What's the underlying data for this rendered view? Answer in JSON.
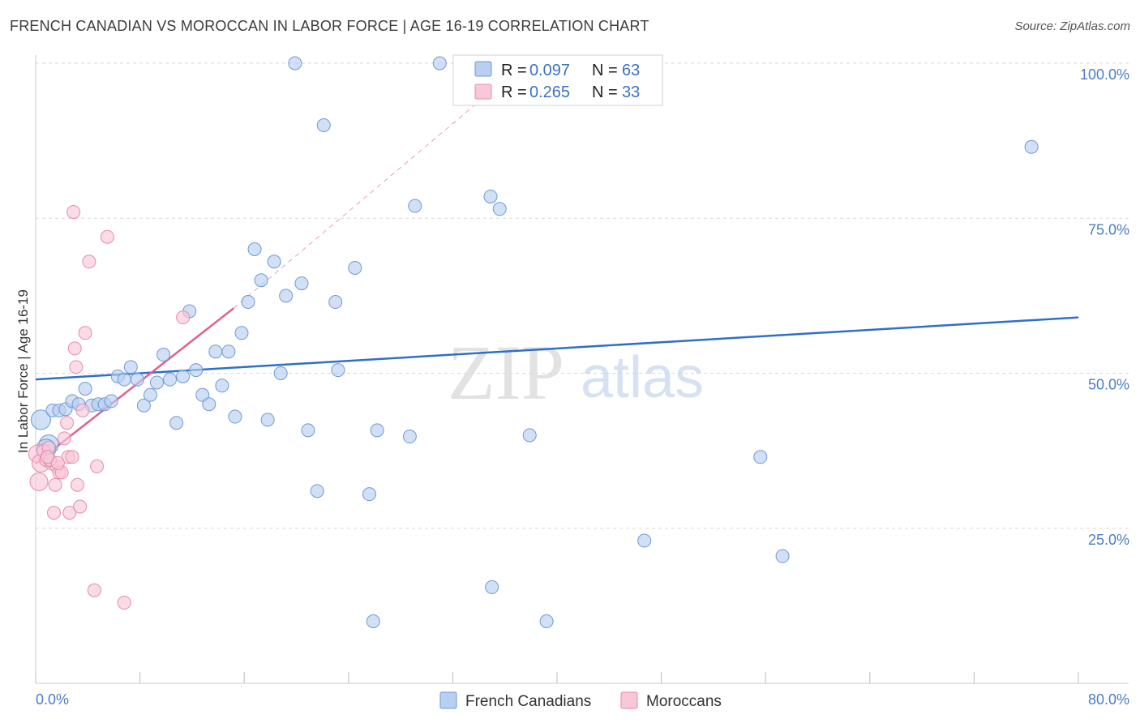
{
  "title": "FRENCH CANADIAN VS MOROCCAN IN LABOR FORCE | AGE 16-19 CORRELATION CHART",
  "source": "Source: ZipAtlas.com",
  "watermark": {
    "zip": "ZIP",
    "atlas": "atlas"
  },
  "colors": {
    "blue_fill": "#b8d0f0",
    "blue_stroke": "#6d9ad8",
    "blue_line": "#2f6fc9",
    "pink_fill": "#f8c8d8",
    "pink_stroke": "#e88aaa",
    "pink_line": "#e0608e",
    "grid": "#d8d8d8",
    "tick_text": "#4a7cc7"
  },
  "legend": {
    "rows": [
      {
        "r_label": "R =",
        "r_value": "0.097",
        "n_label": "N =",
        "n_value": "63"
      },
      {
        "r_label": "R =",
        "r_value": "0.265",
        "n_label": "N =",
        "n_value": "33"
      }
    ]
  },
  "chart_data": {
    "type": "scatter",
    "title": "FRENCH CANADIAN VS MOROCCAN IN LABOR FORCE | AGE 16-19 CORRELATION CHART",
    "xlabel": "",
    "ylabel": "In Labor Force | Age 16-19",
    "xlim": [
      0,
      80
    ],
    "ylim": [
      0,
      100
    ],
    "x_tick_labels": [
      "0.0%",
      "80.0%"
    ],
    "y_tick_labels": [
      {
        "value": 25,
        "label": "25.0%"
      },
      {
        "value": 50,
        "label": "50.0%"
      },
      {
        "value": 75,
        "label": "75.0%"
      },
      {
        "value": 100,
        "label": "100.0%"
      }
    ],
    "series": [
      {
        "name": "French Canadians",
        "points": [
          [
            0.4,
            42.5
          ],
          [
            1.3,
            44.0
          ],
          [
            1.8,
            44.0
          ],
          [
            2.3,
            44.2
          ],
          [
            2.8,
            45.5
          ],
          [
            3.3,
            45.0
          ],
          [
            3.8,
            47.5
          ],
          [
            4.3,
            44.8
          ],
          [
            4.8,
            45.0
          ],
          [
            5.3,
            45.0
          ],
          [
            5.8,
            45.5
          ],
          [
            6.3,
            49.5
          ],
          [
            6.8,
            49.0
          ],
          [
            7.3,
            51.0
          ],
          [
            7.8,
            49.0
          ],
          [
            8.3,
            44.8
          ],
          [
            8.8,
            46.5
          ],
          [
            9.3,
            48.5
          ],
          [
            9.8,
            53.0
          ],
          [
            10.3,
            49.0
          ],
          [
            10.8,
            42.0
          ],
          [
            11.3,
            49.5
          ],
          [
            11.8,
            60.0
          ],
          [
            12.3,
            50.5
          ],
          [
            12.8,
            46.5
          ],
          [
            13.3,
            45.0
          ],
          [
            13.8,
            53.5
          ],
          [
            14.3,
            48.0
          ],
          [
            14.8,
            53.5
          ],
          [
            15.3,
            43.0
          ],
          [
            15.8,
            56.5
          ],
          [
            16.3,
            61.5
          ],
          [
            16.8,
            70.0
          ],
          [
            17.3,
            65.0
          ],
          [
            17.8,
            42.5
          ],
          [
            18.3,
            68.0
          ],
          [
            18.8,
            50.0
          ],
          [
            19.2,
            62.5
          ],
          [
            19.9,
            100.0
          ],
          [
            20.4,
            64.5
          ],
          [
            20.9,
            40.8
          ],
          [
            21.6,
            31.0
          ],
          [
            22.1,
            90.0
          ],
          [
            23.0,
            61.5
          ],
          [
            23.2,
            50.5
          ],
          [
            24.5,
            67.0
          ],
          [
            25.6,
            30.5
          ],
          [
            25.9,
            10.0
          ],
          [
            26.2,
            40.8
          ],
          [
            28.7,
            39.8
          ],
          [
            29.1,
            77.0
          ],
          [
            31.0,
            100.0
          ],
          [
            34.9,
            78.5
          ],
          [
            35.0,
            15.5
          ],
          [
            35.6,
            76.5
          ],
          [
            37.9,
            40.0
          ],
          [
            39.2,
            10.0
          ],
          [
            46.7,
            23.0
          ],
          [
            55.6,
            36.5
          ],
          [
            57.3,
            20.5
          ],
          [
            76.4,
            86.5
          ],
          [
            1.0,
            38.5
          ],
          [
            0.8,
            37.8
          ]
        ],
        "trend": {
          "x0": 0,
          "y0": 49.0,
          "x1": 80,
          "y1": 59.0
        }
      },
      {
        "name": "Moroccans",
        "points": [
          [
            0.15,
            37.0
          ],
          [
            0.25,
            32.5
          ],
          [
            0.4,
            35.5
          ],
          [
            0.6,
            37.5
          ],
          [
            0.8,
            36.0
          ],
          [
            1.0,
            38.0
          ],
          [
            1.2,
            35.5
          ],
          [
            1.4,
            27.5
          ],
          [
            1.5,
            32.0
          ],
          [
            1.6,
            35.0
          ],
          [
            1.8,
            34.0
          ],
          [
            2.0,
            34.0
          ],
          [
            2.2,
            39.5
          ],
          [
            2.4,
            42.0
          ],
          [
            2.5,
            36.5
          ],
          [
            2.6,
            27.5
          ],
          [
            2.8,
            36.5
          ],
          [
            2.9,
            76.0
          ],
          [
            3.0,
            54.0
          ],
          [
            3.1,
            51.0
          ],
          [
            3.2,
            32.0
          ],
          [
            3.4,
            28.5
          ],
          [
            3.6,
            44.0
          ],
          [
            3.8,
            56.5
          ],
          [
            4.1,
            68.0
          ],
          [
            4.5,
            15.0
          ],
          [
            4.7,
            35.0
          ],
          [
            5.5,
            72.0
          ],
          [
            6.8,
            13.0
          ],
          [
            11.3,
            59.0
          ],
          [
            1.1,
            36.0
          ],
          [
            0.9,
            36.5
          ],
          [
            1.7,
            35.5
          ]
        ],
        "trend": {
          "x0": 0,
          "y0": 35.5,
          "x1": 15.2,
          "y1": 60.5
        },
        "trend_extended": {
          "x0": 15.2,
          "y0": 60.5,
          "x1": 37.5,
          "y1": 100.0
        }
      }
    ]
  }
}
